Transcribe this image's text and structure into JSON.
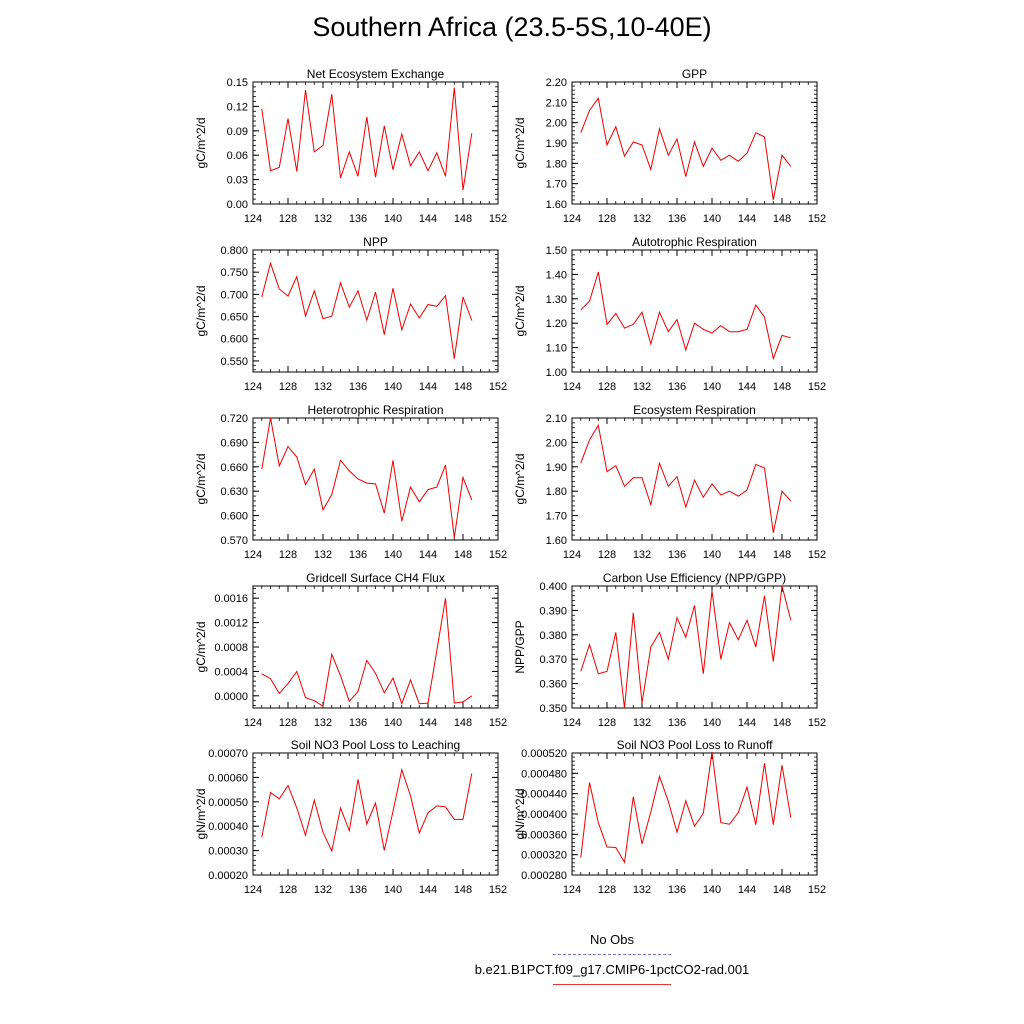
{
  "title": "Southern Africa (23.5-5S,10-40E)",
  "legend": [
    {
      "label": "No Obs",
      "color": "#7777dd",
      "dash": true
    },
    {
      "label": "b.e21.B1PCT.f09_g17.CMIP6-1pctCO2-rad.001",
      "color": "#ee3333",
      "dash": false
    }
  ],
  "chart_data": [
    {
      "type": "line",
      "title": "Net Ecosystem Exchange",
      "ylabel": "gC/m^2/d",
      "xlim": [
        124,
        152
      ],
      "ylim": [
        0,
        0.15
      ],
      "yticks": [
        "0.00",
        "0.03",
        "0.06",
        "0.09",
        "0.12",
        "0.15"
      ],
      "xticks": [
        "124",
        "128",
        "132",
        "136",
        "140",
        "144",
        "148",
        "152"
      ],
      "color": "#ee0000",
      "x": [
        125,
        126,
        127,
        128,
        129,
        130,
        131,
        132,
        133,
        134,
        135,
        136,
        137,
        138,
        139,
        140,
        141,
        142,
        143,
        144,
        145,
        146,
        147,
        148,
        149
      ],
      "y": [
        0.117,
        0.041,
        0.045,
        0.105,
        0.04,
        0.14,
        0.064,
        0.072,
        0.135,
        0.032,
        0.064,
        0.034,
        0.107,
        0.033,
        0.096,
        0.042,
        0.086,
        0.047,
        0.064,
        0.041,
        0.063,
        0.034,
        0.143,
        0.017,
        0.087
      ]
    },
    {
      "type": "line",
      "title": "GPP",
      "ylabel": "gC/m^2/d",
      "xlim": [
        124,
        152
      ],
      "ylim": [
        1.6,
        2.2
      ],
      "yticks": [
        "1.60",
        "1.70",
        "1.80",
        "1.90",
        "2.00",
        "2.10",
        "2.20"
      ],
      "xticks": [
        "124",
        "128",
        "132",
        "136",
        "140",
        "144",
        "148",
        "152"
      ],
      "color": "#ee0000",
      "x": [
        125,
        126,
        127,
        128,
        129,
        130,
        131,
        132,
        133,
        134,
        135,
        136,
        137,
        138,
        139,
        140,
        141,
        142,
        143,
        144,
        145,
        146,
        147,
        148,
        149
      ],
      "y": [
        1.95,
        2.06,
        2.12,
        1.89,
        1.98,
        1.835,
        1.905,
        1.89,
        1.77,
        1.97,
        1.84,
        1.92,
        1.735,
        1.905,
        1.785,
        1.875,
        1.815,
        1.84,
        1.81,
        1.85,
        1.95,
        1.93,
        1.62,
        1.84,
        1.785
      ]
    },
    {
      "type": "line",
      "title": "NPP",
      "ylabel": "gC/m^2/d",
      "xlim": [
        124,
        152
      ],
      "ylim": [
        0.525,
        0.8
      ],
      "yticks": [
        "0.550",
        "0.600",
        "0.650",
        "0.700",
        "0.750",
        "0.800"
      ],
      "ytickvals": [
        0.55,
        0.6,
        0.65,
        0.7,
        0.75,
        0.8
      ],
      "xticks": [
        "124",
        "128",
        "132",
        "136",
        "140",
        "144",
        "148",
        "152"
      ],
      "color": "#ee0000",
      "x": [
        125,
        126,
        127,
        128,
        129,
        130,
        131,
        132,
        133,
        134,
        135,
        136,
        137,
        138,
        139,
        140,
        141,
        142,
        143,
        144,
        145,
        146,
        147,
        148,
        149
      ],
      "y": [
        0.694,
        0.77,
        0.712,
        0.696,
        0.74,
        0.651,
        0.708,
        0.645,
        0.651,
        0.726,
        0.671,
        0.708,
        0.642,
        0.705,
        0.609,
        0.714,
        0.62,
        0.678,
        0.647,
        0.677,
        0.673,
        0.697,
        0.555,
        0.694,
        0.641
      ]
    },
    {
      "type": "line",
      "title": "Autotrophic Respiration",
      "ylabel": "gC/m^2/d",
      "xlim": [
        124,
        152
      ],
      "ylim": [
        1.0,
        1.5
      ],
      "yticks": [
        "1.00",
        "1.10",
        "1.20",
        "1.30",
        "1.40",
        "1.50"
      ],
      "xticks": [
        "124",
        "128",
        "132",
        "136",
        "140",
        "144",
        "148",
        "152"
      ],
      "color": "#ee0000",
      "x": [
        125,
        126,
        127,
        128,
        129,
        130,
        131,
        132,
        133,
        134,
        135,
        136,
        137,
        138,
        139,
        140,
        141,
        142,
        143,
        144,
        145,
        146,
        147,
        148,
        149
      ],
      "y": [
        1.255,
        1.29,
        1.41,
        1.195,
        1.24,
        1.18,
        1.195,
        1.245,
        1.115,
        1.245,
        1.165,
        1.215,
        1.09,
        1.2,
        1.175,
        1.16,
        1.19,
        1.165,
        1.165,
        1.175,
        1.275,
        1.225,
        1.055,
        1.15,
        1.14
      ]
    },
    {
      "type": "line",
      "title": "Heterotrophic Respiration",
      "ylabel": "gC/m^2/d",
      "xlim": [
        124,
        152
      ],
      "ylim": [
        0.57,
        0.72
      ],
      "yticks": [
        "0.570",
        "0.600",
        "0.630",
        "0.660",
        "0.690",
        "0.720"
      ],
      "xticks": [
        "124",
        "128",
        "132",
        "136",
        "140",
        "144",
        "148",
        "152"
      ],
      "color": "#ee0000",
      "x": [
        125,
        126,
        127,
        128,
        129,
        130,
        131,
        132,
        133,
        134,
        135,
        136,
        137,
        138,
        139,
        140,
        141,
        142,
        143,
        144,
        145,
        146,
        147,
        148,
        149
      ],
      "y": [
        0.657,
        0.72,
        0.661,
        0.685,
        0.672,
        0.638,
        0.657,
        0.607,
        0.626,
        0.668,
        0.655,
        0.645,
        0.64,
        0.639,
        0.603,
        0.668,
        0.593,
        0.635,
        0.617,
        0.632,
        0.635,
        0.662,
        0.573,
        0.647,
        0.619
      ]
    },
    {
      "type": "line",
      "title": "Ecosystem Respiration",
      "ylabel": "gC/m^2/d",
      "xlim": [
        124,
        152
      ],
      "ylim": [
        1.6,
        2.1
      ],
      "yticks": [
        "1.60",
        "1.70",
        "1.80",
        "1.90",
        "2.00",
        "2.10"
      ],
      "xticks": [
        "124",
        "128",
        "132",
        "136",
        "140",
        "144",
        "148",
        "152"
      ],
      "color": "#ee0000",
      "x": [
        125,
        126,
        127,
        128,
        129,
        130,
        131,
        132,
        133,
        134,
        135,
        136,
        137,
        138,
        139,
        140,
        141,
        142,
        143,
        144,
        145,
        146,
        147,
        148,
        149
      ],
      "y": [
        1.915,
        2.01,
        2.07,
        1.88,
        1.905,
        1.82,
        1.855,
        1.855,
        1.745,
        1.915,
        1.82,
        1.86,
        1.735,
        1.845,
        1.775,
        1.83,
        1.785,
        1.8,
        1.78,
        1.805,
        1.91,
        1.895,
        1.63,
        1.8,
        1.76
      ]
    },
    {
      "type": "line",
      "title": "Gridcell Surface CH4 Flux",
      "ylabel": "gC/m^2/d",
      "xlim": [
        124,
        152
      ],
      "ylim": [
        -0.0002,
        0.0018
      ],
      "yticks": [
        "0.0000",
        "0.0004",
        "0.0008",
        "0.0012",
        "0.0016"
      ],
      "ytickvals": [
        0,
        0.0004,
        0.0008,
        0.0012,
        0.0016
      ],
      "xticks": [
        "124",
        "128",
        "132",
        "136",
        "140",
        "144",
        "148",
        "152"
      ],
      "color": "#ee0000",
      "x": [
        125,
        126,
        127,
        128,
        129,
        130,
        131,
        132,
        133,
        134,
        135,
        136,
        137,
        138,
        139,
        140,
        141,
        142,
        143,
        144,
        145,
        146,
        147,
        148,
        149
      ],
      "y": [
        0.00036,
        0.00028,
        4e-05,
        0.0002,
        0.0004,
        -3e-05,
        -8e-05,
        -0.00017,
        0.00068,
        0.00033,
        -9e-05,
        7e-05,
        0.00058,
        0.00037,
        5e-05,
        0.00029,
        -0.00013,
        0.00026,
        -0.00013,
        -0.00012,
        0.00074,
        0.0016,
        -0.00012,
        -0.0001,
        0
      ]
    },
    {
      "type": "line",
      "title": "Carbon Use Efficiency (NPP/GPP)",
      "ylabel": "NPP/GPP",
      "xlim": [
        124,
        152
      ],
      "ylim": [
        0.35,
        0.4
      ],
      "yticks": [
        "0.350",
        "0.360",
        "0.370",
        "0.380",
        "0.390",
        "0.400"
      ],
      "xticks": [
        "124",
        "128",
        "132",
        "136",
        "140",
        "144",
        "148",
        "152"
      ],
      "color": "#ee0000",
      "x": [
        125,
        126,
        127,
        128,
        129,
        130,
        131,
        132,
        133,
        134,
        135,
        136,
        137,
        138,
        139,
        140,
        141,
        142,
        143,
        144,
        145,
        146,
        147,
        148,
        149
      ],
      "y": [
        0.365,
        0.376,
        0.364,
        0.365,
        0.381,
        0.35,
        0.389,
        0.352,
        0.375,
        0.381,
        0.37,
        0.387,
        0.379,
        0.392,
        0.364,
        0.398,
        0.37,
        0.385,
        0.378,
        0.386,
        0.375,
        0.396,
        0.369,
        0.4,
        0.386
      ]
    },
    {
      "type": "line",
      "title": "Soil NO3 Pool Loss to Leaching",
      "ylabel": "gN/m^2/d",
      "xlim": [
        124,
        152
      ],
      "ylim": [
        0.0002,
        0.0007
      ],
      "yticks": [
        "0.00020",
        "0.00030",
        "0.00040",
        "0.00050",
        "0.00060",
        "0.00070"
      ],
      "xticks": [
        "124",
        "128",
        "132",
        "136",
        "140",
        "144",
        "148",
        "152"
      ],
      "color": "#ee0000",
      "x": [
        125,
        126,
        127,
        128,
        129,
        130,
        131,
        132,
        133,
        134,
        135,
        136,
        137,
        138,
        139,
        140,
        141,
        142,
        143,
        144,
        145,
        146,
        147,
        148,
        149
      ],
      "y": [
        0.000355,
        0.000538,
        0.000512,
        0.000567,
        0.000475,
        0.000363,
        0.000507,
        0.000375,
        0.000298,
        0.000475,
        0.000381,
        0.000592,
        0.000409,
        0.000495,
        0.000301,
        0.000461,
        0.000631,
        0.000525,
        0.000372,
        0.000455,
        0.000483,
        0.000479,
        0.000428,
        0.000428,
        0.000616
      ]
    },
    {
      "type": "line",
      "title": "Soil NO3 Pool Loss to Runoff",
      "ylabel": "gN/m^2/d",
      "xlim": [
        124,
        152
      ],
      "ylim": [
        0.00028,
        0.00052
      ],
      "yticks": [
        "0.000280",
        "0.000320",
        "0.000360",
        "0.000400",
        "0.000440",
        "0.000480",
        "0.000520"
      ],
      "ytickvals": [
        0.00028,
        0.00032,
        0.00036,
        0.0004,
        0.00044,
        0.00048,
        0.00052
      ],
      "xticks": [
        "124",
        "128",
        "132",
        "136",
        "140",
        "144",
        "148",
        "152"
      ],
      "color": "#ee0000",
      "x": [
        125,
        126,
        127,
        128,
        129,
        130,
        131,
        132,
        133,
        134,
        135,
        136,
        137,
        138,
        139,
        140,
        141,
        142,
        143,
        144,
        145,
        146,
        147,
        148,
        149
      ],
      "y": [
        0.000314,
        0.000462,
        0.000383,
        0.000335,
        0.000334,
        0.000305,
        0.000434,
        0.000341,
        0.000404,
        0.000474,
        0.000425,
        0.000364,
        0.000426,
        0.000376,
        0.000401,
        0.000522,
        0.000383,
        0.00038,
        0.000403,
        0.000453,
        0.000379,
        0.0005,
        0.000379,
        0.000496,
        0.000393
      ]
    }
  ]
}
